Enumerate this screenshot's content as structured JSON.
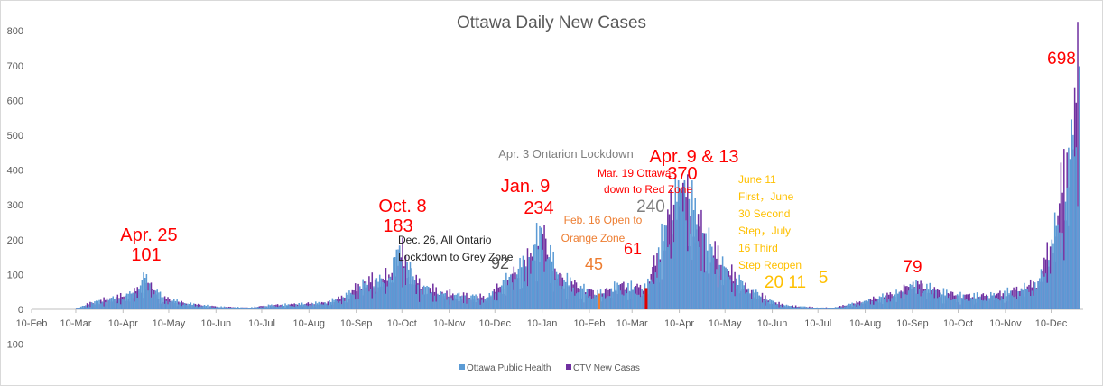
{
  "chart_data": {
    "type": "bar",
    "title": "Ottawa Daily New Cases",
    "xlabel": "",
    "ylabel": "",
    "ylim": [
      -100,
      800
    ],
    "yticks": [
      -100,
      0,
      100,
      200,
      300,
      400,
      500,
      600,
      700,
      800
    ],
    "xlim": [
      "2020-02-10",
      "2021-12-31"
    ],
    "x_tick_labels": [
      "10-Feb",
      "10-Mar",
      "10-Apr",
      "10-May",
      "10-Jun",
      "10-Jul",
      "10-Aug",
      "10-Sep",
      "10-Oct",
      "10-Nov",
      "10-Dec",
      "10-Jan",
      "10-Feb",
      "10-Mar",
      "10-Apr",
      "10-May",
      "10-Jun",
      "10-Jul",
      "10-Aug",
      "10-Sep",
      "10-Oct",
      "10-Nov",
      "10-Dec"
    ],
    "x_tick_dates": [
      "2020-02-10",
      "2020-03-10",
      "2020-04-10",
      "2020-05-10",
      "2020-06-10",
      "2020-07-10",
      "2020-08-10",
      "2020-09-10",
      "2020-10-10",
      "2020-11-10",
      "2020-12-10",
      "2021-01-10",
      "2021-02-10",
      "2021-03-10",
      "2021-04-10",
      "2021-05-10",
      "2021-06-10",
      "2021-07-10",
      "2021-08-10",
      "2021-09-10",
      "2021-10-10",
      "2021-11-10",
      "2021-12-10"
    ],
    "grid": false,
    "legend": "bottom",
    "series": [
      {
        "name": "Ottawa Public Health",
        "color": "#5b9bd5",
        "points": [
          [
            "2020-03-10",
            2
          ],
          [
            "2020-03-20",
            20
          ],
          [
            "2020-04-01",
            30
          ],
          [
            "2020-04-15",
            45
          ],
          [
            "2020-04-25",
            101
          ],
          [
            "2020-05-05",
            35
          ],
          [
            "2020-05-20",
            18
          ],
          [
            "2020-06-10",
            8
          ],
          [
            "2020-07-01",
            5
          ],
          [
            "2020-07-15",
            12
          ],
          [
            "2020-08-01",
            15
          ],
          [
            "2020-08-20",
            20
          ],
          [
            "2020-09-01",
            35
          ],
          [
            "2020-09-15",
            75
          ],
          [
            "2020-10-01",
            90
          ],
          [
            "2020-10-08",
            183
          ],
          [
            "2020-10-20",
            70
          ],
          [
            "2020-11-05",
            45
          ],
          [
            "2020-11-20",
            40
          ],
          [
            "2020-12-05",
            35
          ],
          [
            "2020-12-20",
            100
          ],
          [
            "2021-01-01",
            150
          ],
          [
            "2021-01-09",
            234
          ],
          [
            "2021-01-20",
            100
          ],
          [
            "2021-02-05",
            60
          ],
          [
            "2021-02-16",
            45
          ],
          [
            "2021-03-01",
            70
          ],
          [
            "2021-03-19",
            61
          ],
          [
            "2021-04-01",
            240
          ],
          [
            "2021-04-09",
            370
          ],
          [
            "2021-04-13",
            370
          ],
          [
            "2021-04-25",
            220
          ],
          [
            "2021-05-10",
            120
          ],
          [
            "2021-05-25",
            60
          ],
          [
            "2021-06-11",
            20
          ],
          [
            "2021-06-20",
            11
          ],
          [
            "2021-07-10",
            5
          ],
          [
            "2021-07-20",
            5
          ],
          [
            "2021-08-10",
            25
          ],
          [
            "2021-09-01",
            50
          ],
          [
            "2021-09-10",
            79
          ],
          [
            "2021-09-25",
            55
          ],
          [
            "2021-10-10",
            40
          ],
          [
            "2021-11-01",
            40
          ],
          [
            "2021-11-20",
            60
          ],
          [
            "2021-12-01",
            80
          ],
          [
            "2021-12-10",
            200
          ],
          [
            "2021-12-20",
            350
          ],
          [
            "2021-12-28",
            698
          ]
        ]
      },
      {
        "name": "CTV New Casas",
        "color": "#7030a0",
        "points": [
          [
            "2020-03-10",
            2
          ],
          [
            "2020-03-20",
            20
          ],
          [
            "2020-04-01",
            32
          ],
          [
            "2020-04-15",
            45
          ],
          [
            "2020-04-25",
            75
          ],
          [
            "2020-05-05",
            35
          ],
          [
            "2020-05-20",
            18
          ],
          [
            "2020-06-10",
            8
          ],
          [
            "2020-07-01",
            5
          ],
          [
            "2020-07-15",
            12
          ],
          [
            "2020-08-01",
            15
          ],
          [
            "2020-08-20",
            20
          ],
          [
            "2020-09-01",
            35
          ],
          [
            "2020-09-15",
            80
          ],
          [
            "2020-10-01",
            100
          ],
          [
            "2020-10-08",
            183
          ],
          [
            "2020-10-20",
            75
          ],
          [
            "2020-11-05",
            50
          ],
          [
            "2020-11-20",
            40
          ],
          [
            "2020-12-05",
            35
          ],
          [
            "2020-12-20",
            100
          ],
          [
            "2021-01-01",
            150
          ],
          [
            "2021-01-09",
            234
          ],
          [
            "2021-01-20",
            100
          ],
          [
            "2021-02-05",
            60
          ],
          [
            "2021-02-16",
            45
          ],
          [
            "2021-03-01",
            70
          ],
          [
            "2021-03-19",
            61
          ],
          [
            "2021-04-01",
            240
          ],
          [
            "2021-04-09",
            370
          ],
          [
            "2021-04-13",
            370
          ],
          [
            "2021-04-25",
            220
          ],
          [
            "2021-05-10",
            120
          ],
          [
            "2021-05-25",
            60
          ],
          [
            "2021-06-11",
            20
          ],
          [
            "2021-06-20",
            11
          ],
          [
            "2021-07-10",
            5
          ],
          [
            "2021-07-20",
            5
          ],
          [
            "2021-08-10",
            25
          ],
          [
            "2021-09-01",
            50
          ],
          [
            "2021-09-10",
            79
          ],
          [
            "2021-09-25",
            55
          ],
          [
            "2021-10-10",
            40
          ],
          [
            "2021-11-01",
            40
          ],
          [
            "2021-11-20",
            60
          ],
          [
            "2021-12-01",
            80
          ],
          [
            "2021-12-10",
            200
          ],
          [
            "2021-12-20",
            450
          ],
          [
            "2021-12-28",
            698
          ]
        ]
      }
    ],
    "highlights": [
      {
        "date": "2021-02-16",
        "value": 45,
        "color": "#ed7d31"
      },
      {
        "date": "2021-03-19",
        "value": 61,
        "color": "#e00000"
      }
    ],
    "annotations": [
      {
        "id": "apr25-date",
        "text": "Apr. 25",
        "color": "#ff0000"
      },
      {
        "id": "apr25-val",
        "text": "101",
        "color": "#ff0000"
      },
      {
        "id": "oct8-date",
        "text": "Oct. 8",
        "color": "#ff0000"
      },
      {
        "id": "oct8-val",
        "text": "183",
        "color": "#ff0000"
      },
      {
        "id": "dec26-line1",
        "text": "Dec. 26, All Ontario",
        "color": "#222222"
      },
      {
        "id": "dec26-line2",
        "text": "Lockdown to Grey Zone",
        "color": "#222222"
      },
      {
        "id": "val-92",
        "text": "92",
        "color": "#595959"
      },
      {
        "id": "jan9-date",
        "text": "Jan. 9",
        "color": "#ff0000"
      },
      {
        "id": "jan9-val",
        "text": "234",
        "color": "#ff0000"
      },
      {
        "id": "apr3",
        "text": "Apr. 3 Ontarion Lockdown",
        "color": "#7f7f7f"
      },
      {
        "id": "mar19-line1",
        "text": "Mar. 19 Ottawa",
        "color": "#ff0000"
      },
      {
        "id": "mar19-line2",
        "text": "down to Red Zone",
        "color": "#ff0000"
      },
      {
        "id": "feb16-line1",
        "text": "Feb. 16 Open to",
        "color": "#ed7d31"
      },
      {
        "id": "feb16-line2",
        "text": "Orange Zone",
        "color": "#ed7d31"
      },
      {
        "id": "val-45",
        "text": "45",
        "color": "#ed7d31"
      },
      {
        "id": "val-61",
        "text": "61",
        "color": "#ff0000"
      },
      {
        "id": "val-240",
        "text": "240",
        "color": "#7f7f7f"
      },
      {
        "id": "apr9-date",
        "text": "Apr. 9 & 13",
        "color": "#ff0000"
      },
      {
        "id": "apr9-val",
        "text": "370",
        "color": "#ff0000"
      },
      {
        "id": "june-line1",
        "text": "June 11",
        "color": "#ffc000"
      },
      {
        "id": "june-line2",
        "text": "First，June",
        "color": "#ffc000"
      },
      {
        "id": "june-line3",
        "text": "30 Second",
        "color": "#ffc000"
      },
      {
        "id": "june-line4",
        "text": "Step，July",
        "color": "#ffc000"
      },
      {
        "id": "june-line5",
        "text": "16 Third",
        "color": "#ffc000"
      },
      {
        "id": "june-line6",
        "text": "Step Reopen",
        "color": "#ffc000"
      },
      {
        "id": "val-20-11",
        "text": "20 11",
        "color": "#ffc000"
      },
      {
        "id": "val-5",
        "text": "5",
        "color": "#ffc000"
      },
      {
        "id": "val-79",
        "text": "79",
        "color": "#ff0000"
      },
      {
        "id": "val-698",
        "text": "698",
        "color": "#ff0000"
      }
    ]
  }
}
